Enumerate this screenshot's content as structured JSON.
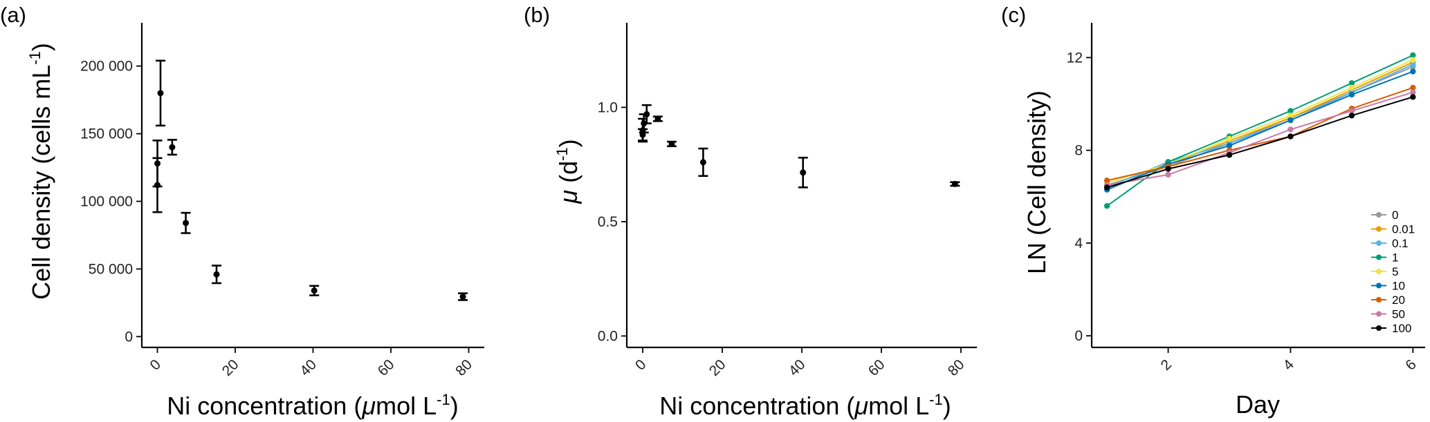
{
  "chart_data": [
    {
      "type": "scatter",
      "panel_label": "(a)",
      "xlabel_parts": {
        "before": "Ni concentration (",
        "mu": "μ",
        "after": "mol L",
        "sup": "-1",
        "close": ")"
      },
      "ylabel_parts": {
        "before": "Cell density (cells mL",
        "sup": "-1",
        "close": ")"
      },
      "xlim": [
        -4,
        84
      ],
      "ylim": [
        -8000,
        232000
      ],
      "x_ticks": [
        0,
        20,
        40,
        60,
        80
      ],
      "x_tick_labels": [
        "0",
        "20",
        "40",
        "60",
        "80"
      ],
      "y_ticks": [
        0,
        50000,
        100000,
        150000,
        200000
      ],
      "y_tick_labels": [
        "0",
        "50 000",
        "100 000",
        "150 000",
        "200 000"
      ],
      "points": [
        {
          "x": 0,
          "y": 112000,
          "err": 20000
        },
        {
          "x": 0.01,
          "y": 128000,
          "err": 17000
        },
        {
          "x": 0.8,
          "y": 180000,
          "err": 24000
        },
        {
          "x": 3.8,
          "y": 140000,
          "err": 5500
        },
        {
          "x": 7.3,
          "y": 84000,
          "err": 7500
        },
        {
          "x": 15.2,
          "y": 46000,
          "err": 6500
        },
        {
          "x": 40.3,
          "y": 34000,
          "err": 3500
        },
        {
          "x": 78.5,
          "y": 29500,
          "err": 2500
        }
      ]
    },
    {
      "type": "scatter",
      "panel_label": "(b)",
      "xlabel_parts": {
        "before": "Ni concentration (",
        "mu": "μ",
        "after": "mol L",
        "sup": "-1",
        "close": ")"
      },
      "ylabel_parts": {
        "before": "μ",
        "mid": " (d",
        "sup": "-1",
        "close": ")"
      },
      "xlim": [
        -4,
        84
      ],
      "ylim": [
        -0.05,
        1.37
      ],
      "x_ticks": [
        0,
        20,
        40,
        60,
        80
      ],
      "x_tick_labels": [
        "0",
        "20",
        "40",
        "60",
        "80"
      ],
      "y_ticks": [
        0,
        0.5,
        1.0
      ],
      "y_tick_labels": [
        "0.0",
        "0.5",
        "1.0"
      ],
      "points": [
        {
          "x": 0,
          "y": 0.88,
          "err": 0.025
        },
        {
          "x": 0.01,
          "y": 0.9,
          "err": 0.05
        },
        {
          "x": 0.3,
          "y": 0.93,
          "err": 0.04
        },
        {
          "x": 1.0,
          "y": 0.97,
          "err": 0.04
        },
        {
          "x": 3.8,
          "y": 0.95,
          "err": 0.01
        },
        {
          "x": 7.3,
          "y": 0.84,
          "err": 0.01
        },
        {
          "x": 15.2,
          "y": 0.76,
          "err": 0.06
        },
        {
          "x": 40.3,
          "y": 0.715,
          "err": 0.065
        },
        {
          "x": 78.5,
          "y": 0.665,
          "err": 0.008
        }
      ]
    },
    {
      "type": "line",
      "panel_label": "(c)",
      "xlabel": "Day",
      "ylabel": "LN (Cell density)",
      "xlim": [
        0.75,
        6.2
      ],
      "ylim": [
        -0.5,
        13.5
      ],
      "x_ticks": [
        2,
        4,
        6
      ],
      "x_tick_labels": [
        "2",
        "4",
        "6"
      ],
      "y_ticks": [
        0,
        4,
        8,
        12
      ],
      "y_tick_labels": [
        "0",
        "4",
        "8",
        "12"
      ],
      "x": [
        1,
        2,
        3,
        4,
        5,
        6
      ],
      "series": [
        {
          "name": "0",
          "color": "#999999",
          "values": [
            6.5,
            7.3,
            8.3,
            9.4,
            10.5,
            11.6
          ]
        },
        {
          "name": "0.01",
          "color": "#E69F00",
          "values": [
            6.6,
            7.4,
            8.4,
            9.4,
            10.6,
            11.8
          ]
        },
        {
          "name": "0.1",
          "color": "#56B4E9",
          "values": [
            6.4,
            7.5,
            8.3,
            9.3,
            10.5,
            11.7
          ]
        },
        {
          "name": "1",
          "color": "#009E73",
          "values": [
            5.6,
            7.5,
            8.6,
            9.7,
            10.9,
            12.1
          ]
        },
        {
          "name": "5",
          "color": "#F0E442",
          "values": [
            6.6,
            7.4,
            8.5,
            9.5,
            10.7,
            11.9
          ]
        },
        {
          "name": "10",
          "color": "#0072B2",
          "values": [
            6.3,
            7.4,
            8.2,
            9.3,
            10.4,
            11.4
          ]
        },
        {
          "name": "20",
          "color": "#D55E00",
          "values": [
            6.7,
            7.3,
            8.0,
            8.6,
            9.8,
            10.7
          ]
        },
        {
          "name": "50",
          "color": "#CC79A7",
          "values": [
            6.5,
            6.95,
            7.9,
            8.9,
            9.7,
            10.5
          ]
        },
        {
          "name": "100",
          "color": "#000000",
          "values": [
            6.4,
            7.2,
            7.8,
            8.6,
            9.5,
            10.3
          ]
        }
      ],
      "legend_position": "bottom-right"
    }
  ]
}
